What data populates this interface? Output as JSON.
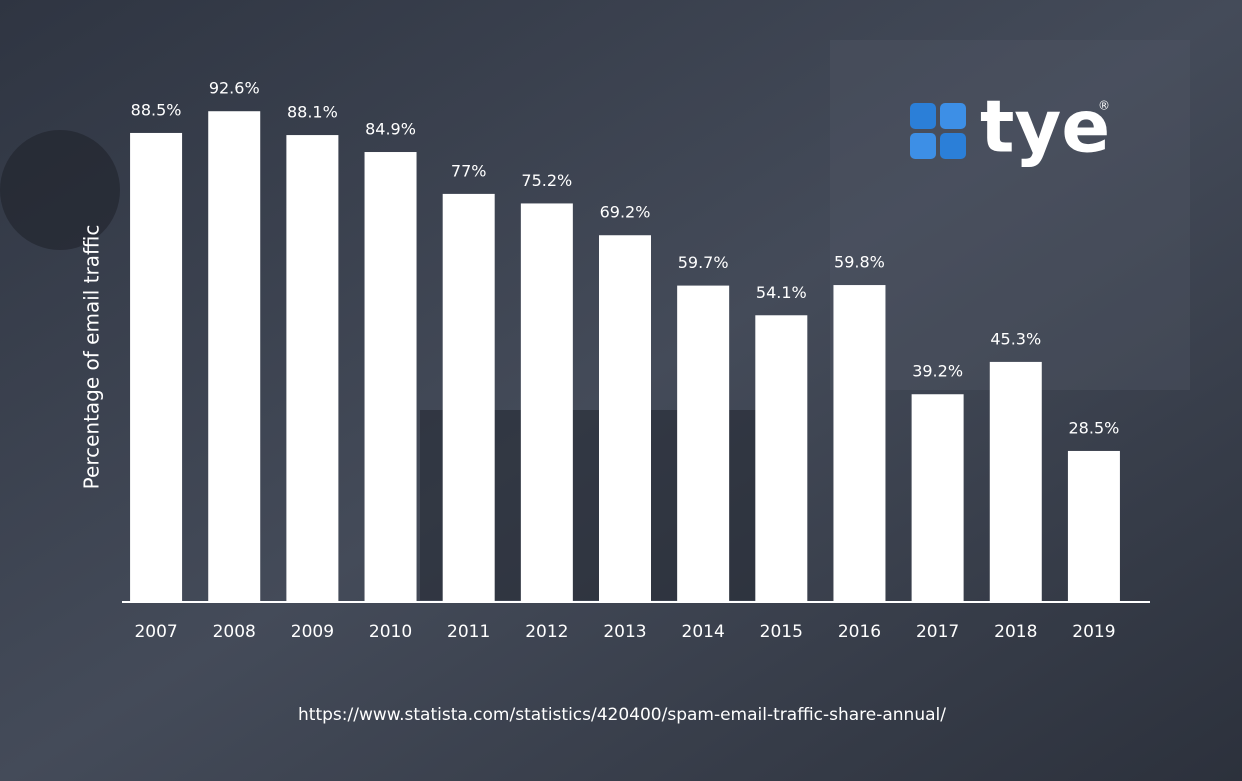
{
  "chart_data": {
    "type": "bar",
    "ylabel": "Percentage of email traffic",
    "categories": [
      "2007",
      "2008",
      "2009",
      "2010",
      "2011",
      "2012",
      "2013",
      "2014",
      "2015",
      "2016",
      "2017",
      "2018",
      "2019"
    ],
    "values": [
      88.5,
      92.6,
      88.1,
      84.9,
      77,
      75.2,
      69.2,
      59.7,
      54.1,
      59.8,
      39.2,
      45.3,
      28.5
    ],
    "value_labels": [
      "88.5%",
      "92.6%",
      "88.1%",
      "84.9%",
      "77%",
      "75.2%",
      "69.2%",
      "59.7%",
      "54.1%",
      "59.8%",
      "39.2%",
      "45.3%",
      "28.5%"
    ],
    "color": "#ffffff",
    "ylim": [
      0,
      100
    ],
    "source": "https://www.statista.com/statistics/420400/spam-email-traffic-share-annual/"
  },
  "logo": {
    "text": "tye",
    "mark": "®"
  }
}
